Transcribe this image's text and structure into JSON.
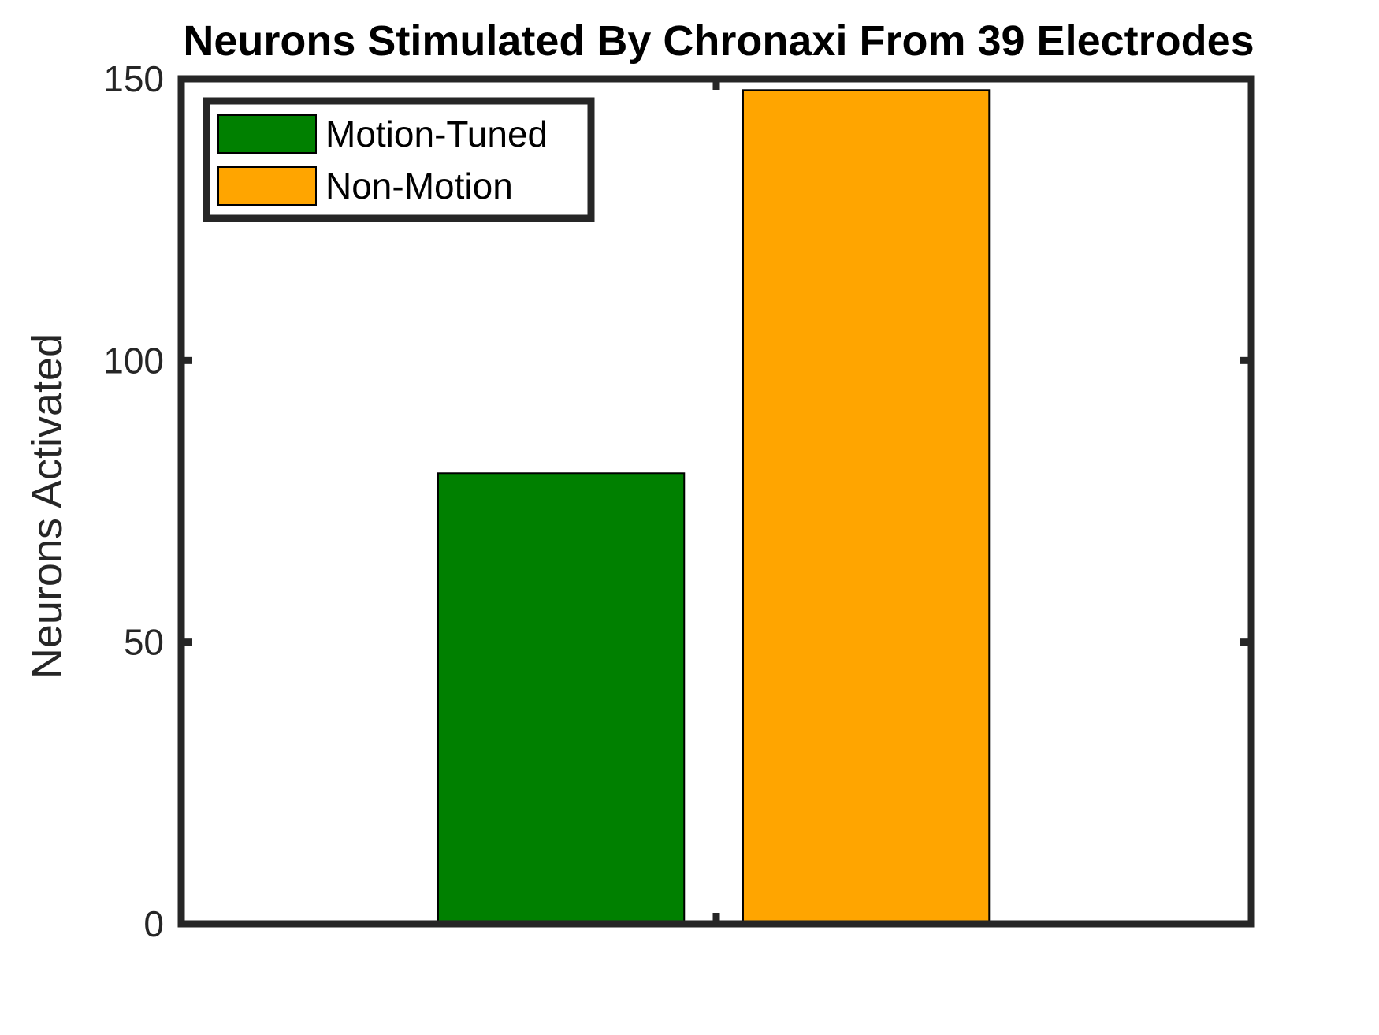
{
  "chart_data": {
    "type": "bar",
    "title": "Neurons Stimulated By Chronaxi From 39 Electrodes",
    "xlabel": "",
    "ylabel": "Neurons Activated",
    "ylim": [
      0,
      150
    ],
    "yticks": [
      0,
      50,
      100,
      150
    ],
    "grid": false,
    "legend_position": "top-left",
    "series": [
      {
        "name": "Motion-Tuned",
        "value": 80,
        "color": "#008000"
      },
      {
        "name": "Non-Motion",
        "value": 148,
        "color": "#FFA500"
      }
    ],
    "axis_color": "#262626"
  }
}
